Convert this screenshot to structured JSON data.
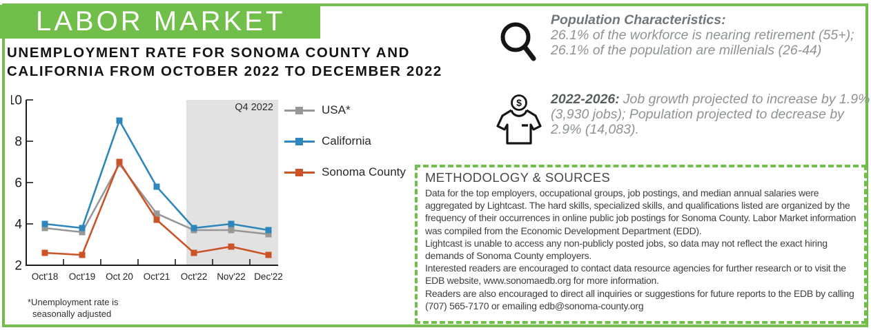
{
  "header": {
    "banner": "LABOR MARKET",
    "title_lines": [
      "UNEMPLOYMENT RATE FOR SONOMA COUNTY AND",
      "CALIFORNIA FROM OCTOBER 2022 TO DECEMBER 2022"
    ]
  },
  "chart_data": {
    "type": "line",
    "title": "",
    "xlabel": "",
    "ylabel": "",
    "categories": [
      "Oct'18",
      "Oct'19",
      "Oct 20",
      "Oct'21",
      "Oct'22",
      "Nov'22",
      "Dec'22"
    ],
    "series": [
      {
        "name": "USA*",
        "color": "#979797",
        "values": [
          3.8,
          3.6,
          6.9,
          4.5,
          3.7,
          3.7,
          3.5
        ]
      },
      {
        "name": "California",
        "color": "#2d87bd",
        "values": [
          4.0,
          3.8,
          9.0,
          5.8,
          3.8,
          4.0,
          3.7
        ]
      },
      {
        "name": "Sonoma County",
        "color": "#cc5227",
        "values": [
          2.6,
          2.5,
          7.0,
          4.2,
          2.6,
          2.9,
          2.5
        ]
      }
    ],
    "ylim": [
      2,
      10
    ],
    "yticks": [
      2,
      4,
      6,
      8,
      10
    ],
    "grid": false,
    "legend_position": "right",
    "highlight_region": {
      "label": "Q4 2022",
      "from_category": "Oct'22",
      "color": "#e2e2e2"
    },
    "footnote": "*Unemployment rate is seasonally adjusted"
  },
  "insights": {
    "population": {
      "icon": "magnifier-icon",
      "heading": "Population Characteristics:",
      "body": "26.1% of the workforce is nearing retirement (55+); 26.1% of the population are millenials (26-44)"
    },
    "projection": {
      "icon": "shirt-dollar-icon",
      "heading": "2022-2026:",
      "body": "Job growth projected to increase by 1.9% (3,930 jobs); Population projected to decrease by 2.9% (14,083)."
    }
  },
  "methodology": {
    "heading": "METHODOLOGY & SOURCES",
    "paragraphs": [
      "Data for the top employers, occupational groups, job postings, and median annual salaries were aggregated by Lightcast. The hard skills, specialized skills, and qualifications listed are organized by the frequency of their occurrences in online public job postings for Sonoma County. Labor Market information was compiled from the Economic Development Department (EDD).",
      "Lightcast is unable to access any non-publicly posted jobs, so data may not reflect the exact hiring demands of Sonoma County employers.",
      "Interested readers are encouraged to contact data resource agencies for further research or to visit the EDB website, www.sonomaedb.org for more information.",
      "Readers are also encouraged to direct all inquiries or suggestions for future reports to the EDB by calling (707) 565-7170 or emailing edb@sonoma-county.org"
    ]
  },
  "icons": {
    "dollar_glyph": "$"
  },
  "colors": {
    "accent_green": "#72be4b",
    "usa_gray": "#979797",
    "california_blue": "#2d87bd",
    "sonoma_orange": "#cc5227",
    "q4_shade": "#e2e2e2",
    "title_black": "#141414",
    "insight_gray": "#8e9396",
    "methodology_text": "#3c4043"
  }
}
